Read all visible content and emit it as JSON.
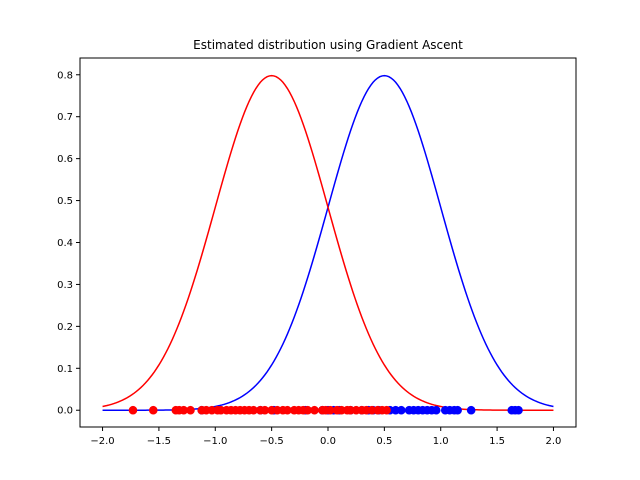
{
  "chart_data": {
    "type": "line",
    "title": "Estimated distribution using Gradient Ascent",
    "xlabel": "",
    "ylabel": "",
    "xlim": [
      -2.2,
      2.2
    ],
    "ylim": [
      -0.04,
      0.84
    ],
    "xticks": [
      -2.0,
      -1.5,
      -1.0,
      -0.5,
      0.0,
      0.5,
      1.0,
      1.5,
      2.0
    ],
    "xtick_labels": [
      "−2.0",
      "−1.5",
      "−1.0",
      "−0.5",
      "0.0",
      "0.5",
      "1.0",
      "1.5",
      "2.0"
    ],
    "yticks": [
      0.0,
      0.1,
      0.2,
      0.3,
      0.4,
      0.5,
      0.6,
      0.7,
      0.8
    ],
    "ytick_labels": [
      "0.0",
      "0.1",
      "0.2",
      "0.3",
      "0.4",
      "0.5",
      "0.6",
      "0.7",
      "0.8"
    ],
    "grid": false,
    "series": [
      {
        "color": "#ff0000",
        "curve": {
          "mean": -0.5,
          "std": 0.5,
          "x_range": [
            -2.0,
            2.0
          ]
        },
        "points_x": [
          -1.73,
          -1.55,
          -1.35,
          -1.32,
          -1.28,
          -1.22,
          -1.12,
          -1.08,
          -1.03,
          -0.98,
          -0.95,
          -0.9,
          -0.86,
          -0.82,
          -0.78,
          -0.74,
          -0.7,
          -0.66,
          -0.6,
          -0.56,
          -0.5,
          -0.45,
          -0.4,
          -0.36,
          -0.3,
          -0.26,
          -0.22,
          -0.18,
          -0.12,
          -0.05,
          -0.02,
          0.02,
          0.08,
          0.12,
          0.17,
          0.2,
          0.25,
          0.3,
          0.34,
          0.39,
          0.44,
          0.48,
          0.52
        ]
      },
      {
        "color": "#0000ff",
        "curve": {
          "mean": 0.5,
          "std": 0.5,
          "x_range": [
            -2.0,
            2.0
          ]
        },
        "points_x": [
          -1.12,
          -0.6,
          -0.48,
          -0.2,
          -0.05,
          0.0,
          0.05,
          0.1,
          0.2,
          0.3,
          0.36,
          0.4,
          0.45,
          0.55,
          0.6,
          0.65,
          0.72,
          0.76,
          0.8,
          0.84,
          0.88,
          0.92,
          0.96,
          1.04,
          1.08,
          1.12,
          1.15,
          1.27,
          1.63,
          1.66,
          1.69
        ]
      }
    ]
  }
}
